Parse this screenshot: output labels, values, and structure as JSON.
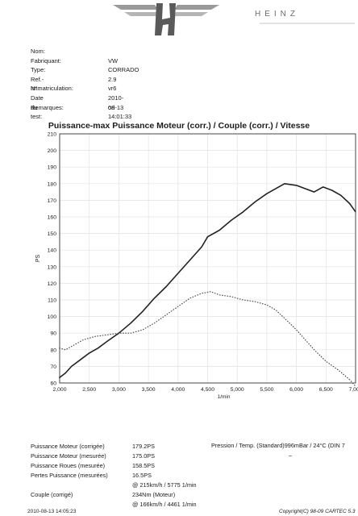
{
  "header": {
    "brand": "HEINZ",
    "logo_icon": "winged-h-logo"
  },
  "vehicle_info": [
    {
      "label": "Nom:",
      "value": ""
    },
    {
      "label": "Fabriquant:",
      "value": "VW"
    },
    {
      "label": "Type:",
      "value": "CORRADO"
    },
    {
      "label": "Ref.-N°.:",
      "value": "2.9 vr6"
    },
    {
      "label": "Immatriculation:",
      "value": ""
    },
    {
      "label": "Date du test:",
      "value": "2010-08-13 14:01:33"
    },
    {
      "label": "Remarques:",
      "value": "ori"
    }
  ],
  "chart_data": {
    "type": "line",
    "title": "Puissance-max Puissance Moteur (corr.) / Couple (corr.) / Vitesse",
    "xlabel": "1/min",
    "ylabel": "PS",
    "xlim": [
      2000,
      7000
    ],
    "ylim": [
      60,
      210
    ],
    "x_ticks": [
      "2,000",
      "2,500",
      "3,000",
      "3,500",
      "4,000",
      "4,500",
      "5,000",
      "5,500",
      "6,000",
      "6,500",
      "7,000"
    ],
    "y_ticks": [
      "60",
      "70",
      "80",
      "90",
      "100",
      "110",
      "120",
      "130",
      "140",
      "150",
      "160",
      "170",
      "180",
      "190",
      "200",
      "210"
    ],
    "grid": true,
    "series": [
      {
        "line_style": "solid",
        "color": "#222222",
        "points": [
          [
            1990,
            63
          ],
          [
            2100,
            66
          ],
          [
            2200,
            70
          ],
          [
            2350,
            74
          ],
          [
            2500,
            78
          ],
          [
            2650,
            81
          ],
          [
            2800,
            85
          ],
          [
            3000,
            90
          ],
          [
            3200,
            96
          ],
          [
            3400,
            103
          ],
          [
            3600,
            111
          ],
          [
            3800,
            118
          ],
          [
            4000,
            126
          ],
          [
            4200,
            134
          ],
          [
            4400,
            142
          ],
          [
            4500,
            148
          ],
          [
            4700,
            152
          ],
          [
            4900,
            158
          ],
          [
            5100,
            163
          ],
          [
            5300,
            169
          ],
          [
            5500,
            174
          ],
          [
            5700,
            178
          ],
          [
            5800,
            180
          ],
          [
            6000,
            179
          ],
          [
            6150,
            177
          ],
          [
            6300,
            175
          ],
          [
            6450,
            178
          ],
          [
            6600,
            176
          ],
          [
            6750,
            173
          ],
          [
            6900,
            168
          ],
          [
            7000,
            163
          ]
        ]
      },
      {
        "line_style": "dotted",
        "color": "#444444",
        "points": [
          [
            1990,
            81
          ],
          [
            2100,
            80
          ],
          [
            2200,
            82
          ],
          [
            2400,
            86
          ],
          [
            2600,
            88
          ],
          [
            2800,
            89
          ],
          [
            3000,
            90
          ],
          [
            3200,
            90
          ],
          [
            3400,
            92
          ],
          [
            3600,
            96
          ],
          [
            3800,
            101
          ],
          [
            4000,
            106
          ],
          [
            4200,
            111
          ],
          [
            4400,
            114
          ],
          [
            4550,
            115
          ],
          [
            4700,
            113
          ],
          [
            4900,
            112
          ],
          [
            5100,
            110
          ],
          [
            5300,
            109
          ],
          [
            5500,
            107
          ],
          [
            5650,
            104
          ],
          [
            5800,
            99
          ],
          [
            6000,
            92
          ],
          [
            6150,
            86
          ],
          [
            6300,
            80
          ],
          [
            6500,
            73
          ],
          [
            6700,
            68
          ],
          [
            6900,
            62
          ],
          [
            7000,
            58
          ]
        ]
      }
    ]
  },
  "results": [
    {
      "label": "Puissance Moteur (corrigée)",
      "value": "179.2PS",
      "extra": ""
    },
    {
      "label": "Puissance Moteur (mesurée)",
      "value": "175.0PS",
      "extra": ""
    },
    {
      "label": "Puissance Roues (mesurée)",
      "value": "158.5PS",
      "extra": ""
    },
    {
      "label": "Pertes Puissance (mesurées)",
      "value": "16.5PS",
      "extra": ""
    },
    {
      "label": "",
      "value": "@ 215km/h / 5775 1/min",
      "extra": ""
    },
    {
      "label": "Couple (corrigé)",
      "value": "234Nm (Moteur)",
      "extra": ""
    },
    {
      "label": "",
      "value": "@ 166km/h / 4461 1/min",
      "extra": ""
    }
  ],
  "pressure_text": "Pression / Temp. (Standard)996mBar / 24°C  (DIN 7",
  "pressure_dash": "–",
  "footer": {
    "left": "2010-08-13 14:05:23",
    "right": "Copyright(C) 98-09 CARTEC 5.3"
  }
}
